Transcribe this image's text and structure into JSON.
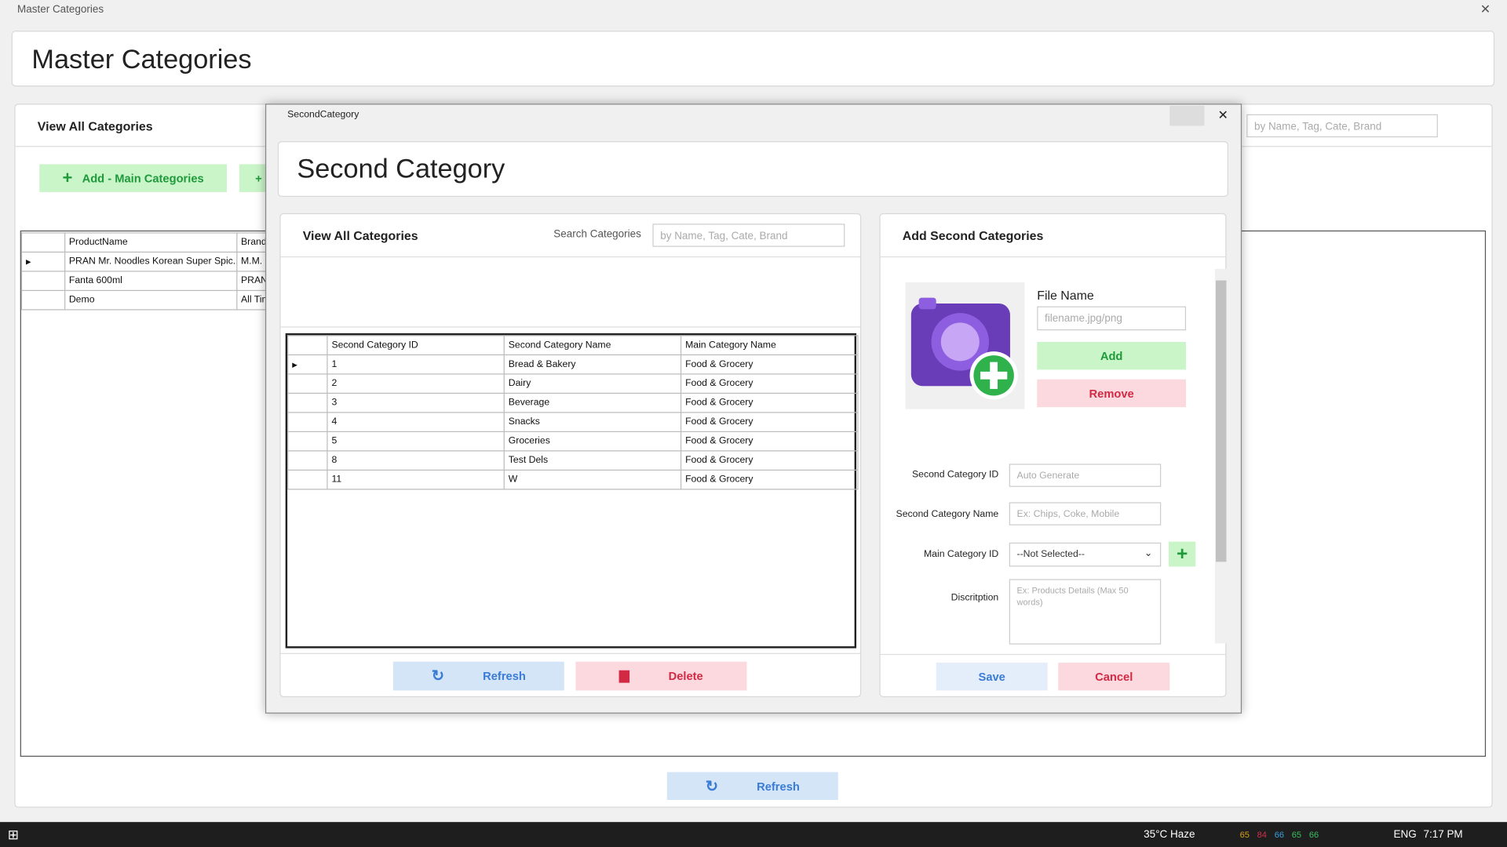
{
  "window": {
    "title": "Master Categories"
  },
  "header": {
    "title": "Master Categories"
  },
  "main": {
    "view_title": "View All Categories",
    "search_placeholder": "by Name, Tag, Cate, Brand",
    "add_button": "Add - Main Categories",
    "table": {
      "columns": [
        "ProductName",
        "Brand Nam"
      ],
      "rows": [
        [
          "PRAN Mr. Noodles Korean Super Spic...",
          "M.M. Ispaha"
        ],
        [
          "Fanta 600ml",
          "PRAN Beve"
        ],
        [
          "Demo",
          "All Time"
        ]
      ]
    },
    "refresh_button": "Refresh"
  },
  "dialog": {
    "title": "SecondCategory",
    "heading": "Second Category",
    "left": {
      "title": "View All Categories",
      "search_label": "Search Categories",
      "search_placeholder": "by Name, Tag, Cate, Brand",
      "table": {
        "columns": [
          "Second Category ID",
          "Second Category Name",
          "Main Category Name"
        ],
        "rows": [
          [
            "1",
            "Bread & Bakery",
            "Food & Grocery"
          ],
          [
            "2",
            "Dairy",
            "Food & Grocery"
          ],
          [
            "3",
            "Beverage",
            "Food & Grocery"
          ],
          [
            "4",
            "Snacks",
            "Food & Grocery"
          ],
          [
            "5",
            "Groceries",
            "Food & Grocery"
          ],
          [
            "8",
            "Test Dels",
            "Food & Grocery"
          ],
          [
            "11",
            "W",
            "Food & Grocery"
          ]
        ]
      },
      "refresh_button": "Refresh",
      "delete_button": "Delete"
    },
    "right": {
      "title": "Add Second Categories",
      "file_label": "File Name",
      "file_placeholder": "filename.jpg/png",
      "add_button": "Add",
      "remove_button": "Remove",
      "id_label": "Second Category ID",
      "id_placeholder": "Auto Generate",
      "name_label": "Second  Category Name",
      "name_placeholder": "Ex: Chips, Coke, Mobile",
      "main_label": "Main Category ID",
      "main_select": "--Not Selected--",
      "desc_label": "Discritption",
      "desc_placeholder": "Ex: Products Details (Max 50 words)",
      "save_button": "Save",
      "cancel_button": "Cancel"
    }
  },
  "taskbar": {
    "weather": "35°C  Haze",
    "tray": [
      "65",
      "84",
      "66",
      "65",
      "66"
    ],
    "language": "ENG",
    "time": "7:17 PM"
  }
}
